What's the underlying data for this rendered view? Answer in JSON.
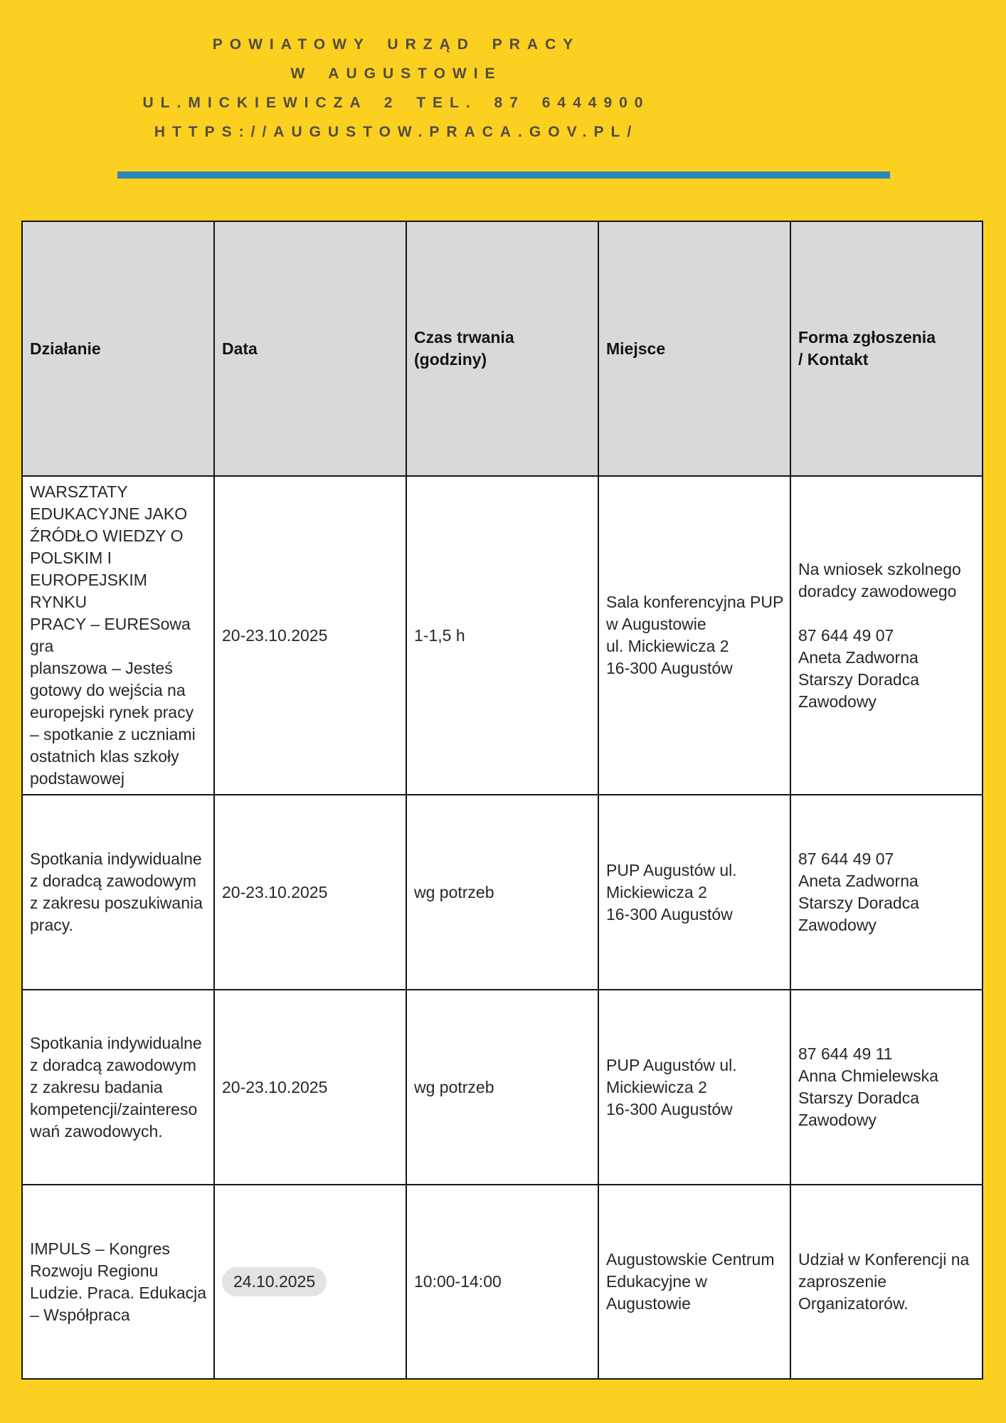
{
  "colors": {
    "page_bg": "#FCD021",
    "divider": "#2D86B9",
    "header_text": "#524C40",
    "table_header_bg": "#D9D9D9",
    "body_text": "#272727",
    "border": "#161616",
    "pill_bg": "#E3E3E3"
  },
  "masthead": {
    "line1": "POWIATOWY URZĄD PRACY",
    "line2": "W AUGUSTOWIE",
    "line3": "UL.MICKIEWICZA 2 TEL. 87 6444900",
    "line4": "HTTPS://AUGUSTOW.PRACA.GOV.PL/"
  },
  "table": {
    "headers": [
      "Działanie",
      "Data",
      "Czas trwania\n(godziny)",
      "Miejsce",
      "Forma zgłoszenia\n/ Kontakt"
    ],
    "rows": [
      {
        "activity": "WARSZTATY\nEDUKACYJNE JAKO\nŹRÓDŁO WIEDZY O\nPOLSKIM I\nEUROPEJSKIM RYNKU\nPRACY – EURESowa gra\nplanszowa – Jesteś\ngotowy do wejścia na\neuropejski rynek pracy\n– spotkanie z uczniami\nostatnich klas szkoły\npodstawowej",
        "date": "20-23.10.2025",
        "date_highlighted": false,
        "duration": "1-1,5 h",
        "place": "Sala konferencyjna PUP\nw Augustowie\nul. Mickiewicza 2\n16-300 Augustów",
        "contact": "Na wniosek szkolnego\ndoradcy zawodowego\n\n87 644 49 07\nAneta Zadworna\nStarszy Doradca\nZawodowy"
      },
      {
        "activity": "Spotkania indywidualne\nz doradcą zawodowym\nz zakresu poszukiwania\npracy.",
        "date": "20-23.10.2025",
        "date_highlighted": false,
        "duration": "wg potrzeb",
        "place": "PUP Augustów ul.\nMickiewicza 2\n16-300 Augustów",
        "contact": "87 644 49 07\nAneta Zadworna\nStarszy Doradca\nZawodowy"
      },
      {
        "activity": "Spotkania indywidualne\nz doradcą zawodowym\nz zakresu badania\nkompetencji/zaintereso\nwań zawodowych.",
        "date": "20-23.10.2025",
        "date_highlighted": false,
        "duration": "wg potrzeb",
        "place": "PUP Augustów ul.\nMickiewicza 2\n16-300 Augustów",
        "contact": "87 644 49 11\nAnna Chmielewska\nStarszy Doradca\nZawodowy"
      },
      {
        "activity": "IMPULS – Kongres\nRozwoju Regionu\nLudzie. Praca. Edukacja\n– Współpraca",
        "date": "24.10.2025",
        "date_highlighted": true,
        "duration": "10:00-14:00",
        "place": "Augustowskie Centrum\nEdukacyjne w\nAugustowie",
        "contact": "Udział w Konferencji na\nzaproszenie\nOrganizatorów."
      }
    ]
  }
}
